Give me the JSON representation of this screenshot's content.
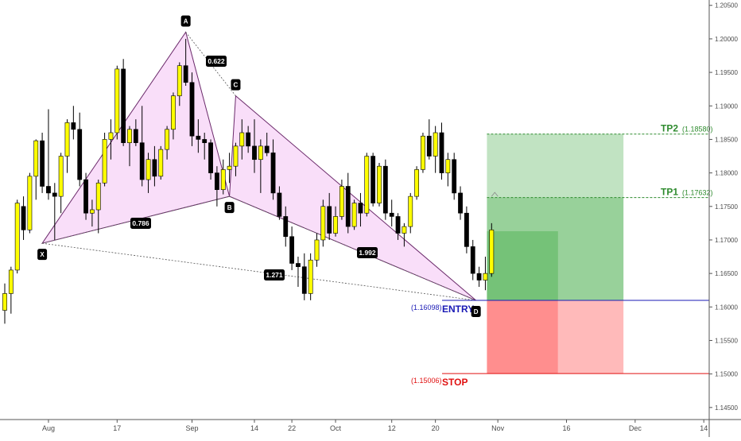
{
  "chart_data": {
    "type": "candlestick",
    "ylim": [
      1.1432,
      1.2058
    ],
    "y_ticks": [
      "1.20500",
      "1.20000",
      "1.19500",
      "1.19000",
      "1.18500",
      "1.18000",
      "1.17500",
      "1.17000",
      "1.16500",
      "1.16000",
      "1.15500",
      "1.15000",
      "1.14500"
    ],
    "x_ticks": [
      "Aug",
      "17",
      "Sep",
      "14",
      "22",
      "Oct",
      "12",
      "20",
      "Nov",
      "16",
      "Dec",
      "14"
    ],
    "candles": [
      [
        1.1595,
        1.1635,
        1.1575,
        1.162
      ],
      [
        1.162,
        1.166,
        1.159,
        1.1655
      ],
      [
        1.1655,
        1.176,
        1.165,
        1.1755
      ],
      [
        1.175,
        1.1765,
        1.17,
        1.1715
      ],
      [
        1.1715,
        1.18,
        1.171,
        1.1795
      ],
      [
        1.1795,
        1.185,
        1.176,
        1.1848
      ],
      [
        1.1848,
        1.186,
        1.177,
        1.178
      ],
      [
        1.178,
        1.1895,
        1.176,
        1.177
      ],
      [
        1.177,
        1.1785,
        1.17,
        1.1765
      ],
      [
        1.1765,
        1.183,
        1.174,
        1.1825
      ],
      [
        1.1825,
        1.188,
        1.18,
        1.1875
      ],
      [
        1.1875,
        1.19,
        1.185,
        1.1865
      ],
      [
        1.1865,
        1.189,
        1.178,
        1.179
      ],
      [
        1.179,
        1.18,
        1.173,
        1.174
      ],
      [
        1.174,
        1.176,
        1.172,
        1.1745
      ],
      [
        1.1745,
        1.179,
        1.171,
        1.1785
      ],
      [
        1.1785,
        1.186,
        1.178,
        1.185
      ],
      [
        1.185,
        1.188,
        1.182,
        1.186
      ],
      [
        1.186,
        1.196,
        1.185,
        1.1955
      ],
      [
        1.1955,
        1.197,
        1.184,
        1.1845
      ],
      [
        1.1845,
        1.187,
        1.181,
        1.1865
      ],
      [
        1.1865,
        1.188,
        1.184,
        1.1845
      ],
      [
        1.1845,
        1.19,
        1.178,
        1.179
      ],
      [
        1.179,
        1.183,
        1.177,
        1.182
      ],
      [
        1.182,
        1.184,
        1.178,
        1.1795
      ],
      [
        1.1795,
        1.184,
        1.179,
        1.1835
      ],
      [
        1.1835,
        1.187,
        1.182,
        1.1865
      ],
      [
        1.1865,
        1.192,
        1.185,
        1.1915
      ],
      [
        1.1915,
        1.1965,
        1.19,
        1.196
      ],
      [
        1.196,
        1.2,
        1.193,
        1.1935
      ],
      [
        1.1935,
        1.195,
        1.184,
        1.1855
      ],
      [
        1.1855,
        1.188,
        1.183,
        1.185
      ],
      [
        1.185,
        1.186,
        1.182,
        1.1845
      ],
      [
        1.1845,
        1.185,
        1.179,
        1.18
      ],
      [
        1.18,
        1.181,
        1.175,
        1.1775
      ],
      [
        1.1775,
        1.182,
        1.1768,
        1.1805
      ],
      [
        1.1805,
        1.183,
        1.1785,
        1.181
      ],
      [
        1.181,
        1.1845,
        1.1795,
        1.184
      ],
      [
        1.184,
        1.188,
        1.182,
        1.186
      ],
      [
        1.186,
        1.187,
        1.183,
        1.184
      ],
      [
        1.184,
        1.188,
        1.18,
        1.182
      ],
      [
        1.182,
        1.185,
        1.177,
        1.184
      ],
      [
        1.184,
        1.186,
        1.1825,
        1.183
      ],
      [
        1.183,
        1.185,
        1.176,
        1.177
      ],
      [
        1.177,
        1.178,
        1.173,
        1.1735
      ],
      [
        1.1735,
        1.175,
        1.169,
        1.1705
      ],
      [
        1.1705,
        1.172,
        1.1655,
        1.1665
      ],
      [
        1.1665,
        1.1675,
        1.163,
        1.166
      ],
      [
        1.166,
        1.168,
        1.161,
        1.162
      ],
      [
        1.162,
        1.168,
        1.161,
        1.167
      ],
      [
        1.167,
        1.171,
        1.166,
        1.17
      ],
      [
        1.17,
        1.176,
        1.169,
        1.175
      ],
      [
        1.175,
        1.177,
        1.17,
        1.171
      ],
      [
        1.171,
        1.175,
        1.1705,
        1.1735
      ],
      [
        1.1735,
        1.179,
        1.173,
        1.178
      ],
      [
        1.178,
        1.18,
        1.171,
        1.172
      ],
      [
        1.172,
        1.176,
        1.1715,
        1.1755
      ],
      [
        1.1755,
        1.177,
        1.172,
        1.174
      ],
      [
        1.174,
        1.183,
        1.1735,
        1.1825
      ],
      [
        1.1825,
        1.183,
        1.175,
        1.1755
      ],
      [
        1.1755,
        1.1815,
        1.175,
        1.181
      ],
      [
        1.181,
        1.182,
        1.173,
        1.174
      ],
      [
        1.174,
        1.176,
        1.172,
        1.1735
      ],
      [
        1.1735,
        1.174,
        1.17,
        1.171
      ],
      [
        1.171,
        1.1725,
        1.169,
        1.172
      ],
      [
        1.172,
        1.177,
        1.171,
        1.1765
      ],
      [
        1.1765,
        1.181,
        1.176,
        1.1805
      ],
      [
        1.1805,
        1.186,
        1.18,
        1.1855
      ],
      [
        1.1855,
        1.188,
        1.182,
        1.1825
      ],
      [
        1.1825,
        1.187,
        1.18,
        1.186
      ],
      [
        1.186,
        1.1875,
        1.179,
        1.18
      ],
      [
        1.18,
        1.183,
        1.178,
        1.182
      ],
      [
        1.182,
        1.183,
        1.176,
        1.177
      ],
      [
        1.177,
        1.178,
        1.173,
        1.174
      ],
      [
        1.174,
        1.175,
        1.168,
        1.169
      ],
      [
        1.169,
        1.17,
        1.164,
        1.165
      ],
      [
        1.165,
        1.166,
        1.163,
        1.164
      ],
      [
        1.164,
        1.1675,
        1.1625,
        1.165
      ],
      [
        1.165,
        1.1725,
        1.1645,
        1.1715
      ]
    ],
    "patterns": {
      "points": [
        {
          "label": "X",
          "x": 6,
          "y": 1.1695
        },
        {
          "label": "A",
          "x": 29,
          "y": 1.201
        },
        {
          "label": "B",
          "x": 36,
          "y": 1.1765
        },
        {
          "label": "C",
          "x": 37,
          "y": 1.1915
        },
        {
          "label": "D",
          "x": 75.5,
          "y": 1.16098
        }
      ],
      "ratios": [
        {
          "label": "0.622",
          "between": [
            "A",
            "C"
          ]
        },
        {
          "label": "0.786",
          "between": [
            "X",
            "B"
          ]
        },
        {
          "label": "1.271",
          "between": [
            "X",
            "D"
          ]
        },
        {
          "label": "1.992",
          "between": [
            "B",
            "D"
          ]
        }
      ],
      "fill_color": "#f8d8f8",
      "line_color": "#6b2a6b"
    },
    "levels": [
      {
        "name": "TP2",
        "value": "(1.18580)",
        "price": 1.1858,
        "color": "#2e8b2e"
      },
      {
        "name": "TP1",
        "value": "(1.17632)",
        "price": 1.17632,
        "color": "#2e8b2e"
      },
      {
        "name": "ENTRY",
        "value": "(1.16098)",
        "price": 1.16098,
        "color": "#1a1ab5"
      },
      {
        "name": "STOP",
        "value": "(1.15006)",
        "price": 1.15006,
        "color": "#e01010"
      }
    ],
    "position": {
      "x_start": 77,
      "x_mid": 88,
      "x_end": 99
    },
    "colors": {
      "bull": "#ffff00",
      "bear": "#000000",
      "wick": "#000000",
      "profit": "#4caf50",
      "loss": "#ff5252"
    }
  }
}
